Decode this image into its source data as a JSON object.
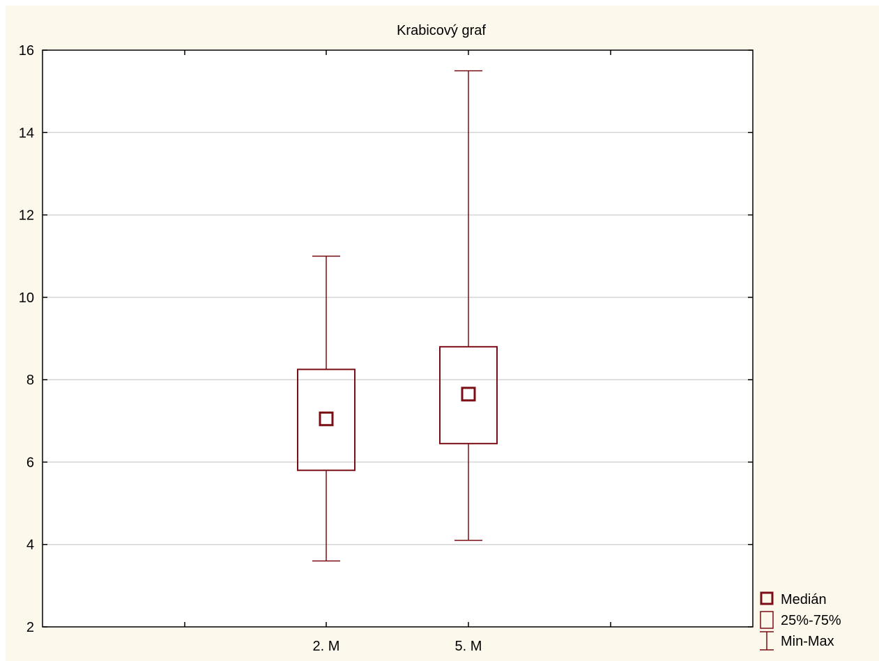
{
  "chart_data": {
    "type": "box",
    "title": "Krabicový graf",
    "xlabel": "",
    "ylabel": "",
    "ylim": [
      2,
      16
    ],
    "yticks": [
      "2",
      "4",
      "6",
      "8",
      "10",
      "12",
      "14",
      "16"
    ],
    "grid": true,
    "categories": [
      "2. M",
      "5. M"
    ],
    "boxes": [
      {
        "category": "2. M",
        "min": 3.6,
        "q1": 5.8,
        "median": 7.05,
        "q3": 8.25,
        "max": 11.0
      },
      {
        "category": "5. M",
        "min": 4.1,
        "q1": 6.45,
        "median": 7.65,
        "q3": 8.8,
        "max": 15.5
      }
    ],
    "legend": {
      "placement": "bottom-right",
      "entries": [
        "Medián",
        "25%-75%",
        "Min-Max"
      ]
    },
    "colors": {
      "box": "#7a0e14",
      "grid": "#d4d4d4",
      "background": "#fdf8ec",
      "plot": "#ffffff"
    }
  }
}
